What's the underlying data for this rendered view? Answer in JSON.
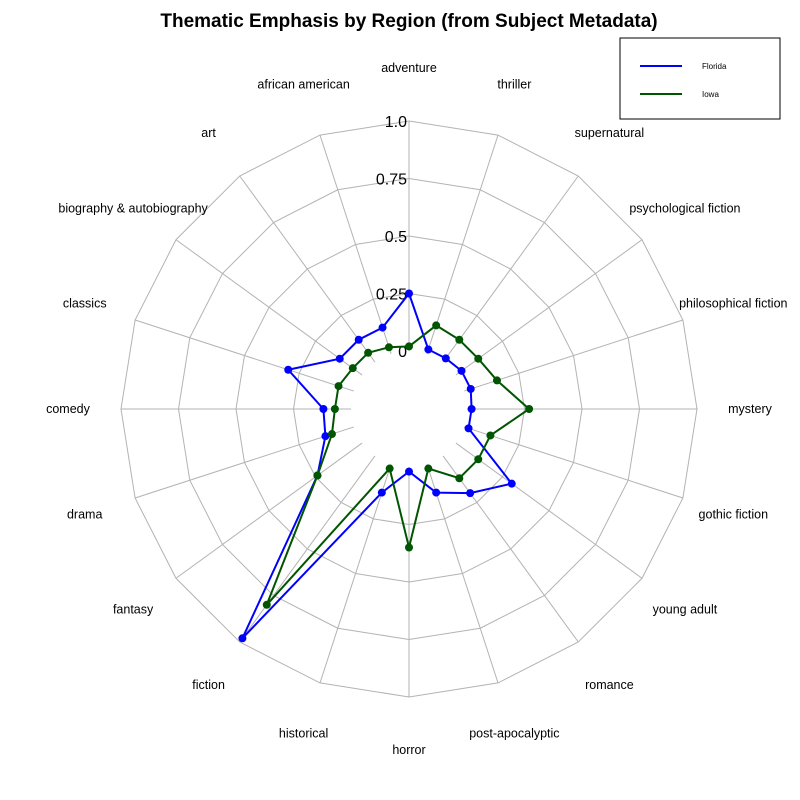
{
  "chart_data": {
    "type": "radar",
    "title": "Thematic Emphasis by Region (from Subject Metadata)",
    "categories": [
      "adventure",
      "thriller",
      "supernatural",
      "psychological fiction",
      "philosophical fiction",
      "mystery",
      "gothic fiction",
      "young adult",
      "romance",
      "post-apocalyptic",
      "horror",
      "historical",
      "fiction",
      "fantasy",
      "drama",
      "comedy",
      "classics",
      "biography & autobiography",
      "art",
      "african american"
    ],
    "r_ticks": [
      "0",
      "0.25",
      "0.5",
      "0.75",
      "1.0"
    ],
    "rlim": [
      0,
      1
    ],
    "grid": true,
    "legend_position": "top-right",
    "series": [
      {
        "name": "Florida",
        "color": "#0000ff",
        "values": [
          0.25,
          0.02,
          0.02,
          0.03,
          0.03,
          0.02,
          0.02,
          0.3,
          0.2,
          0.13,
          0.02,
          0.13,
          0.98,
          0.24,
          0.13,
          0.12,
          0.3,
          0.12,
          0.12,
          0.12
        ]
      },
      {
        "name": "Iowa",
        "color": "#005500",
        "values": [
          0.02,
          0.13,
          0.12,
          0.12,
          0.15,
          0.27,
          0.12,
          0.12,
          0.12,
          0.02,
          0.35,
          0.02,
          0.8,
          0.24,
          0.1,
          0.07,
          0.07,
          0.05,
          0.05,
          0.03
        ]
      }
    ]
  }
}
